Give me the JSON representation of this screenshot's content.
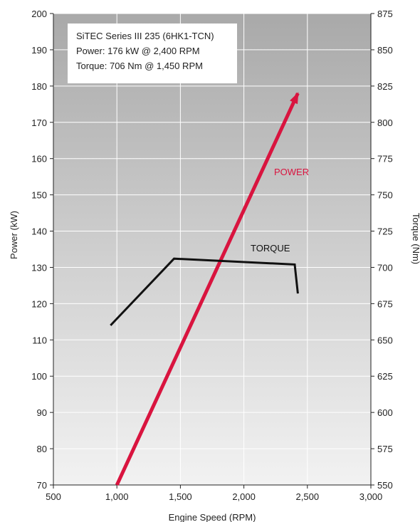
{
  "chart_data": {
    "type": "line",
    "info_box": {
      "line1": "SiTEC Series III 235 (6HK1-TCN)",
      "line2": "Power: 176 kW @ 2,400 RPM",
      "line3": "Torque: 706 Nm @ 1,450 RPM"
    },
    "xlabel": "Engine Speed (RPM)",
    "ylabel_left": "Power (kW)",
    "ylabel_right": "Torque (Nm)",
    "xlim": [
      500,
      3000
    ],
    "ylim_left": [
      70,
      200
    ],
    "ylim_right": [
      550,
      875
    ],
    "x_ticks": [
      {
        "value": 500,
        "label": "500"
      },
      {
        "value": 1000,
        "label": "1,000"
      },
      {
        "value": 1500,
        "label": "1,500"
      },
      {
        "value": 2000,
        "label": "2,000"
      },
      {
        "value": 2500,
        "label": "2,500"
      },
      {
        "value": 3000,
        "label": "3,000"
      }
    ],
    "y_left_ticks": [
      {
        "value": 70,
        "label": "70"
      },
      {
        "value": 80,
        "label": "80"
      },
      {
        "value": 90,
        "label": "90"
      },
      {
        "value": 100,
        "label": "100"
      },
      {
        "value": 110,
        "label": "110"
      },
      {
        "value": 120,
        "label": "120"
      },
      {
        "value": 130,
        "label": "130"
      },
      {
        "value": 140,
        "label": "140"
      },
      {
        "value": 150,
        "label": "150"
      },
      {
        "value": 160,
        "label": "160"
      },
      {
        "value": 170,
        "label": "170"
      },
      {
        "value": 180,
        "label": "180"
      },
      {
        "value": 190,
        "label": "190"
      },
      {
        "value": 200,
        "label": "200"
      }
    ],
    "y_right_ticks": [
      {
        "value": 550,
        "label": "550"
      },
      {
        "value": 575,
        "label": "575"
      },
      {
        "value": 600,
        "label": "600"
      },
      {
        "value": 625,
        "label": "625"
      },
      {
        "value": 650,
        "label": "650"
      },
      {
        "value": 675,
        "label": "675"
      },
      {
        "value": 700,
        "label": "700"
      },
      {
        "value": 725,
        "label": "725"
      },
      {
        "value": 750,
        "label": "750"
      },
      {
        "value": 775,
        "label": "775"
      },
      {
        "value": 800,
        "label": "800"
      },
      {
        "value": 825,
        "label": "825"
      },
      {
        "value": 850,
        "label": "850"
      },
      {
        "value": 875,
        "label": "875"
      }
    ],
    "grid": true,
    "series": [
      {
        "name": "POWER",
        "axis": "left",
        "color": "#d9143f",
        "x": [
          1000,
          2425
        ],
        "y": [
          70,
          178
        ]
      },
      {
        "name": "TORQUE",
        "axis": "right",
        "color": "#111111",
        "x": [
          950,
          1450,
          2400,
          2425
        ],
        "y": [
          660,
          706,
          702,
          682
        ]
      }
    ]
  }
}
